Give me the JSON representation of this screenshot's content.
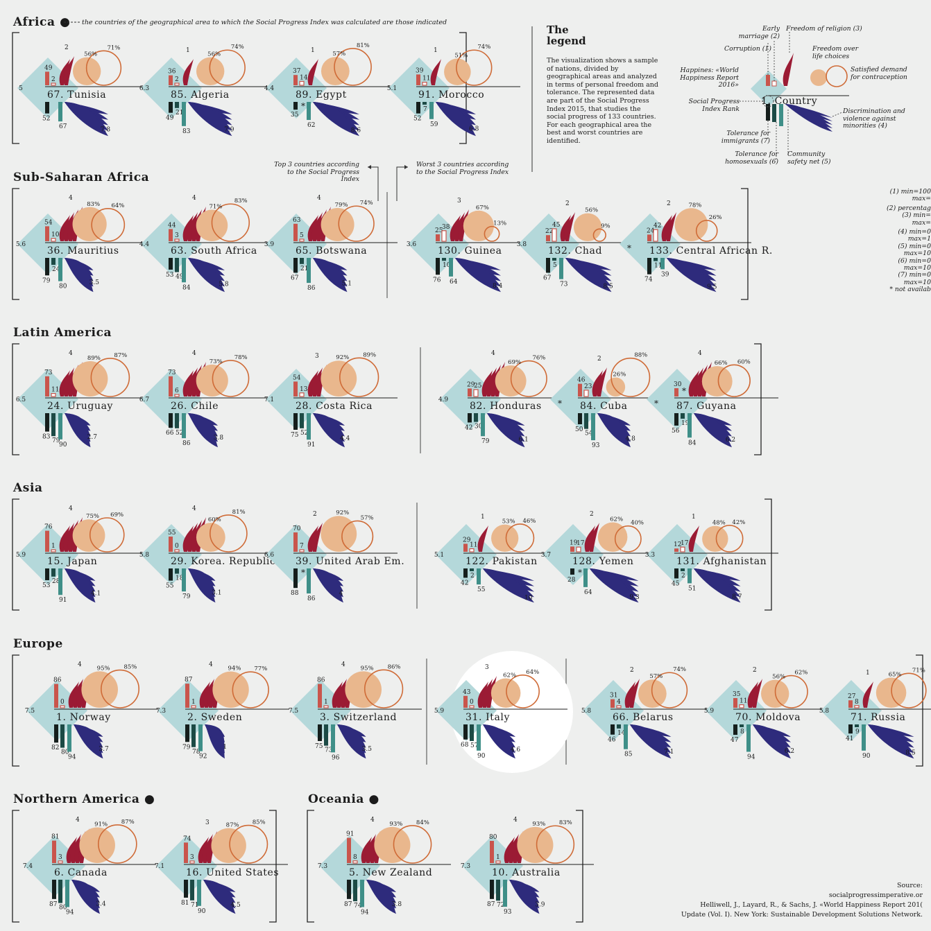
{
  "colors": {
    "diamond": "#b4d8da",
    "red": "#c9554c",
    "happy": "#e9b78d",
    "ring": "#cf6b37",
    "feather": "#9b1b34",
    "wing": "#2e2b7c",
    "dark": "#151e1c",
    "teal": "#3f8f88"
  },
  "africa_note": "the countries of the geographical area to which the Social Progress Index was calculated are those indicated",
  "legend": {
    "title": "The legend",
    "text": "The visualization shows a sample of nations, divided by geographical areas and analyzed in terms of personal freedom and tolerance. The represented data are part of the Social Progress Index 2015, that studies the social progress of 133 countries. For each geographical area the best and worst countries are identified.",
    "labels": {
      "early_marriage": "Early marriage (2)",
      "freedom_religion": "Freedom of religion (3)",
      "corruption": "Corruption (1)",
      "freedom_life": "Freedom over life choices",
      "happiness": "Happines: «World Happiness Report 2016»",
      "contraception": "Satisfied demand for contraception",
      "spi_rank": "Social Progress Index Rank",
      "country": "1. Country",
      "discrimination": "Discrimination and violence against minorities (4)",
      "tol_immigrants": "Tolerance for immigrants (7)",
      "tol_homosexuals": "Tolerance for homosexuals (6)",
      "community_safety": "Community safety net (5)"
    }
  },
  "captions": {
    "top3": "Top 3 countries according to the Social Progress Index",
    "worst3": "Worst 3 countries according to the Social Progress Index"
  },
  "side_notes": [
    "(1) min=100",
    "max=",
    "(2) percentag",
    "(3) min=",
    "max=",
    "(4) min=0",
    "max=1",
    "(5) min=0",
    "max=10",
    "(6) min=0",
    "max=10",
    "(7) min=0",
    "max=10",
    "* not availab"
  ],
  "source": [
    "Source:",
    "socialprogressimperative.or",
    "Helliwell, J., Layard, R., & Sachs, J. «World Happiness Report 201(",
    "Update (Vol. I). New York: Sustainable Development Solutions Network."
  ],
  "chart_data": {
    "type": "glyph-matrix",
    "regions": [
      {
        "name": "Africa ●",
        "countries": [
          {
            "rank": 67,
            "name": "Tunisia",
            "happiness": "5",
            "corruption": "49",
            "early_marriage": "2",
            "religion": "2",
            "life_choices": "56%",
            "contraception": "71%",
            "discrimination": "7.8",
            "community": "52",
            "homosexuals": "67",
            "immigrants": null
          },
          {
            "rank": 85,
            "name": "Algeria",
            "happiness": "6.3",
            "corruption": "36",
            "early_marriage": "2",
            "religion": "1",
            "life_choices": "56%",
            "contraception": "74%",
            "discrimination": "7.9",
            "community": "49",
            "homosexuals": "83",
            "immigrants": "21"
          },
          {
            "rank": 89,
            "name": "Egypt",
            "happiness": "4.4",
            "corruption": "37",
            "early_marriage": "14",
            "religion": "1",
            "life_choices": "57%",
            "contraception": "81%",
            "discrimination": "8.6",
            "community": "35",
            "homosexuals": "62",
            "immigrants": "*"
          },
          {
            "rank": 91,
            "name": "Morocco",
            "happiness": "5.1",
            "corruption": "39",
            "early_marriage": "11",
            "religion": "1",
            "life_choices": "51%",
            "contraception": "74%",
            "discrimination": "6.8",
            "community": "52",
            "homosexuals": "59",
            "immigrants": "7"
          }
        ]
      },
      {
        "name": "Sub-Saharan Africa",
        "countries": [
          {
            "rank": 36,
            "name": "Mauritius",
            "happiness": "5.6",
            "corruption": "54",
            "early_marriage": "10",
            "religion": "4",
            "life_choices": "83%",
            "contraception": "64%",
            "discrimination": "3.5",
            "community": "79",
            "homosexuals": "80",
            "immigrants": "24"
          },
          {
            "rank": 63,
            "name": "South Africa",
            "happiness": "4.4",
            "corruption": "44",
            "early_marriage": "3",
            "religion": "4",
            "life_choices": "71%",
            "contraception": "83%",
            "discrimination": "5.8",
            "community": "53",
            "homosexuals": "84",
            "immigrants": "49"
          },
          {
            "rank": 65,
            "name": "Botswana",
            "happiness": "3.9",
            "corruption": "63",
            "early_marriage": "5",
            "religion": "4",
            "life_choices": "79%",
            "contraception": "74%",
            "discrimination": "5.1",
            "community": "67",
            "homosexuals": "86",
            "immigrants": "21"
          },
          {
            "rank": 130,
            "name": "Guinea",
            "happiness": "3.6",
            "corruption": "25",
            "early_marriage": "38",
            "religion": "3",
            "life_choices": "67%",
            "contraception": "13%",
            "discrimination": "8.4",
            "community": "76",
            "homosexuals": "64",
            "immigrants": "10"
          },
          {
            "rank": 132,
            "name": "Chad",
            "happiness": "3.8",
            "corruption": "22",
            "early_marriage": "45",
            "religion": "2",
            "life_choices": "56%",
            "contraception": "9%",
            "discrimination": "8.5",
            "community": "67",
            "homosexuals": "73",
            "immigrants": "5"
          },
          {
            "rank": 133,
            "name": "Central African R.",
            "happiness": "*",
            "corruption": "24",
            "early_marriage": "42",
            "religion": "2",
            "life_choices": "78%",
            "contraception": "26%",
            "discrimination": "9.5",
            "community": "74",
            "homosexuals": "39",
            "immigrants": "11"
          }
        ]
      },
      {
        "name": "Latin America",
        "countries": [
          {
            "rank": 24,
            "name": "Uruguay",
            "happiness": "6.5",
            "corruption": "73",
            "early_marriage": "11",
            "religion": "4",
            "life_choices": "89%",
            "contraception": "87%",
            "discrimination": "2.7",
            "community": "83",
            "homosexuals": "90",
            "immigrants": "79"
          },
          {
            "rank": 26,
            "name": "Chile",
            "happiness": "6.7",
            "corruption": "73",
            "early_marriage": "6",
            "religion": "4",
            "life_choices": "73%",
            "contraception": "78%",
            "discrimination": "3.8",
            "community": "66",
            "homosexuals": "86",
            "immigrants": "52"
          },
          {
            "rank": 28,
            "name": "Costa Rica",
            "happiness": "7.1",
            "corruption": "54",
            "early_marriage": "13",
            "religion": "3",
            "life_choices": "92%",
            "contraception": "89%",
            "discrimination": "4.4",
            "community": "75",
            "homosexuals": "91",
            "immigrants": "52"
          },
          {
            "rank": 82,
            "name": "Honduras",
            "happiness": "4.9",
            "corruption": "29",
            "early_marriage": "25",
            "religion": "4",
            "life_choices": "69%",
            "contraception": "76%",
            "discrimination": "6.1",
            "community": "42",
            "homosexuals": "79",
            "immigrants": "30"
          },
          {
            "rank": 84,
            "name": "Cuba",
            "happiness": "*",
            "corruption": "46",
            "early_marriage": "23",
            "religion": "2",
            "life_choices": "26%",
            "contraception": "88%",
            "discrimination": "4.8",
            "community": "50",
            "homosexuals": "93",
            "immigrants": "54"
          },
          {
            "rank": 87,
            "name": "Guyana",
            "happiness": "*",
            "corruption": "30",
            "early_marriage": "*",
            "religion": "4",
            "life_choices": "66%",
            "contraception": "60%",
            "discrimination": "6.2",
            "community": "56",
            "homosexuals": "84",
            "immigrants": "19"
          }
        ]
      },
      {
        "name": "Asia",
        "countries": [
          {
            "rank": 15,
            "name": "Japan",
            "happiness": "5.9",
            "corruption": "76",
            "early_marriage": "1",
            "religion": "4",
            "life_choices": "75%",
            "contraception": "69%",
            "discrimination": "4.1",
            "community": "53",
            "homosexuals": "91",
            "immigrants": "28"
          },
          {
            "rank": 29,
            "name": "Korea. Republic of",
            "happiness": "5.8",
            "corruption": "55",
            "early_marriage": "0",
            "religion": "4",
            "life_choices": "60%",
            "contraception": "81%",
            "discrimination": "3.1",
            "community": "55",
            "homosexuals": "79",
            "immigrants": "18"
          },
          {
            "rank": 39,
            "name": "United Arab Em.",
            "happiness": "6.6",
            "corruption": "70",
            "early_marriage": "7",
            "religion": "2",
            "life_choices": "92%",
            "contraception": "57%",
            "discrimination": "4",
            "community": "88",
            "homosexuals": "86",
            "immigrants": "*"
          },
          {
            "rank": 122,
            "name": "Pakistan",
            "happiness": "5.1",
            "corruption": "29",
            "early_marriage": "11",
            "religion": "1",
            "life_choices": "53%",
            "contraception": "46%",
            "discrimination": "10",
            "community": "42",
            "homosexuals": "55",
            "immigrants": "2"
          },
          {
            "rank": 128,
            "name": "Yemen",
            "happiness": "3.7",
            "corruption": "19",
            "early_marriage": "17",
            "religion": "2",
            "life_choices": "62%",
            "contraception": "40%",
            "discrimination": "9.3",
            "community": "28",
            "homosexuals": "64",
            "immigrants": "*"
          },
          {
            "rank": 131,
            "name": "Afghanistan",
            "happiness": "3.3",
            "corruption": "12",
            "early_marriage": "17",
            "religion": "1",
            "life_choices": "48%",
            "contraception": "42%",
            "discrimination": "8.7",
            "community": "45",
            "homosexuals": "51",
            "immigrants": "2"
          }
        ]
      },
      {
        "name": "Europe",
        "countries": [
          {
            "rank": 1,
            "name": "Norway",
            "happiness": "7.5",
            "corruption": "86",
            "early_marriage": "0",
            "religion": "4",
            "life_choices": "95%",
            "contraception": "85%",
            "discrimination": "3.7",
            "community": "82",
            "homosexuals": "94",
            "immigrants": "80"
          },
          {
            "rank": 2,
            "name": "Sweden",
            "happiness": "7.3",
            "corruption": "87",
            "early_marriage": "1",
            "religion": "4",
            "life_choices": "94%",
            "contraception": "77%",
            "discrimination": "1",
            "community": "79",
            "homosexuals": "92",
            "immigrants": "78"
          },
          {
            "rank": 3,
            "name": "Switzerland",
            "happiness": "7.5",
            "corruption": "86",
            "early_marriage": "1",
            "religion": "4",
            "life_choices": "95%",
            "contraception": "86%",
            "discrimination": "3.5",
            "community": "75",
            "homosexuals": "96",
            "immigrants": "73"
          },
          {
            "rank": 31,
            "name": "Italy",
            "happiness": "5.9",
            "corruption": "43",
            "early_marriage": "0",
            "religion": "3",
            "life_choices": "62%",
            "contraception": "64%",
            "discrimination": "4.6",
            "community": "68",
            "homosexuals": "90",
            "immigrants": "57"
          },
          {
            "rank": 66,
            "name": "Belarus",
            "happiness": "5.8",
            "corruption": "31",
            "early_marriage": "4",
            "religion": "2",
            "life_choices": "57%",
            "contraception": "74%",
            "discrimination": "7.1",
            "community": "46",
            "homosexuals": "85",
            "immigrants": "14"
          },
          {
            "rank": 70,
            "name": "Moldova",
            "happiness": "5.9",
            "corruption": "35",
            "early_marriage": "11",
            "religion": "2",
            "life_choices": "56%",
            "contraception": "62%",
            "discrimination": "6.2",
            "community": "47",
            "homosexuals": "94",
            "immigrants": "8"
          },
          {
            "rank": 71,
            "name": "Russia",
            "happiness": "5.8",
            "corruption": "27",
            "early_marriage": "8",
            "religion": "1",
            "life_choices": "65%",
            "contraception": "71%",
            "discrimination": "8.5",
            "community": "41",
            "homosexuals": "90",
            "immigrants": "9"
          }
        ]
      },
      {
        "name": "Northern America ●",
        "countries": [
          {
            "rank": 6,
            "name": "Canada",
            "happiness": "7.4",
            "corruption": "81",
            "early_marriage": "3",
            "religion": "4",
            "life_choices": "91%",
            "contraception": "87%",
            "discrimination": "3.4",
            "community": "87",
            "homosexuals": "94",
            "immigrants": "80"
          },
          {
            "rank": 16,
            "name": "United States",
            "happiness": "7.1",
            "corruption": "74",
            "early_marriage": "3",
            "religion": "3",
            "life_choices": "87%",
            "contraception": "85%",
            "discrimination": "4.5",
            "community": "81",
            "homosexuals": "90",
            "immigrants": "71"
          }
        ]
      },
      {
        "name": "Oceania ●",
        "countries": [
          {
            "rank": 5,
            "name": "New Zealand",
            "happiness": "7.3",
            "corruption": "91",
            "early_marriage": "8",
            "religion": "4",
            "life_choices": "93%",
            "contraception": "84%",
            "discrimination": "3.8",
            "community": "87",
            "homosexuals": "94",
            "immigrants": "74"
          },
          {
            "rank": 10,
            "name": "Australia",
            "happiness": "7.3",
            "corruption": "80",
            "early_marriage": "1",
            "religion": "4",
            "life_choices": "93%",
            "contraception": "83%",
            "discrimination": "3.9",
            "community": "87",
            "homosexuals": "93",
            "immigrants": "72"
          }
        ]
      }
    ]
  }
}
